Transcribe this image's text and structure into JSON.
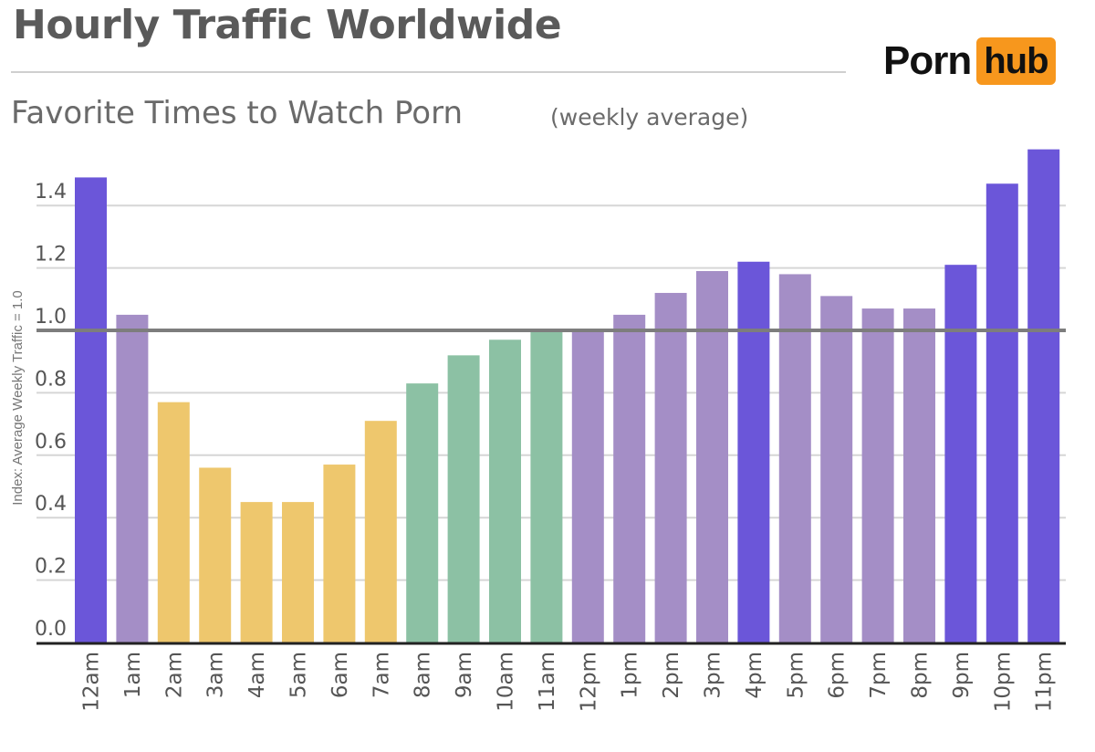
{
  "header": {
    "title": "Hourly Traffic Worldwide",
    "subtitle": "Favorite Times to Watch Porn",
    "subtitle_note": "(weekly average)"
  },
  "logo": {
    "part1": "Porn",
    "part2": "hub",
    "accent_color": "#f7971d"
  },
  "chart_data": {
    "type": "bar",
    "title": "Favorite Times to Watch Porn",
    "ylabel": "Index: Average Weekly Traffic = 1.0",
    "xlabel": "",
    "ylim": [
      0,
      1.6
    ],
    "yticks": [
      "0.0",
      "0.2",
      "0.4",
      "0.6",
      "0.8",
      "1.0",
      "1.2",
      "1.4"
    ],
    "ytick_values": [
      0,
      0.2,
      0.4,
      0.6,
      0.8,
      1.0,
      1.2,
      1.4
    ],
    "reference_line": 1.0,
    "grid": true,
    "categories": [
      "12am",
      "1am",
      "2am",
      "3am",
      "4am",
      "5am",
      "6am",
      "7am",
      "8am",
      "9am",
      "10am",
      "11am",
      "12pm",
      "1pm",
      "2pm",
      "3pm",
      "4pm",
      "5pm",
      "6pm",
      "7pm",
      "8pm",
      "9pm",
      "10pm",
      "11pm"
    ],
    "values": [
      1.49,
      1.05,
      0.77,
      0.56,
      0.45,
      0.45,
      0.57,
      0.71,
      0.83,
      0.92,
      0.97,
      1.0,
      1.0,
      1.05,
      1.12,
      1.19,
      1.22,
      1.18,
      1.11,
      1.07,
      1.07,
      1.21,
      1.47,
      1.58
    ],
    "bar_colors": [
      "#6b56d9",
      "#a48ec6",
      "#eec76d",
      "#eec76d",
      "#eec76d",
      "#eec76d",
      "#eec76d",
      "#eec76d",
      "#8cc1a4",
      "#8cc1a4",
      "#8cc1a4",
      "#8cc1a4",
      "#a48ec6",
      "#a48ec6",
      "#a48ec6",
      "#a48ec6",
      "#6b56d9",
      "#a48ec6",
      "#a48ec6",
      "#a48ec6",
      "#a48ec6",
      "#6b56d9",
      "#6b56d9",
      "#6b56d9"
    ],
    "colors": {
      "grid": "#d6d6d6",
      "reference_line": "#7d7d7d",
      "axis": "#222222"
    }
  }
}
